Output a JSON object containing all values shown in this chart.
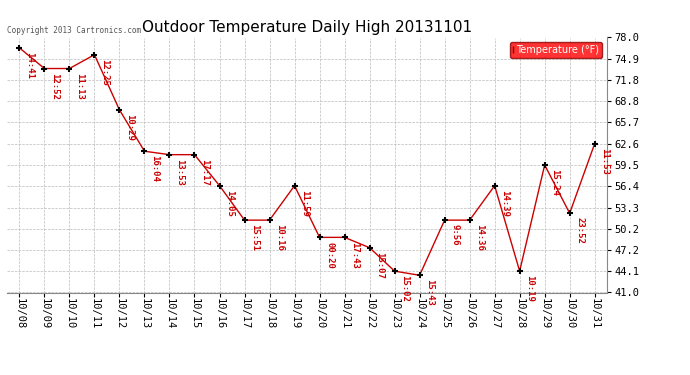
{
  "title": "Outdoor Temperature Daily High 20131101",
  "copyright_text": "Copyright 2013 Cartronics.com",
  "legend_label": "Temperature (°F)",
  "x_labels": [
    "10/08",
    "10/09",
    "10/10",
    "10/11",
    "10/12",
    "10/13",
    "10/14",
    "10/15",
    "10/16",
    "10/17",
    "10/18",
    "10/19",
    "10/20",
    "10/21",
    "10/22",
    "10/23",
    "10/24",
    "10/25",
    "10/26",
    "10/27",
    "10/28",
    "10/29",
    "10/30",
    "10/31"
  ],
  "y_values": [
    76.5,
    73.5,
    73.5,
    75.5,
    67.5,
    61.5,
    61.0,
    61.0,
    56.5,
    51.5,
    51.5,
    56.5,
    49.0,
    49.0,
    47.5,
    44.1,
    43.5,
    51.5,
    51.5,
    56.5,
    44.1,
    59.5,
    52.5,
    62.6
  ],
  "time_labels": [
    "14:41",
    "12:52",
    "11:13",
    "12:25",
    "10:29",
    "16:04",
    "13:53",
    "17:17",
    "14:05",
    "15:51",
    "10:16",
    "11:59",
    "00:20",
    "17:43",
    "15:07",
    "15:02",
    "15:43",
    "9:56",
    "14:36",
    "14:39",
    "10:19",
    "15:24",
    "23:52",
    "11:53"
  ],
  "y_min": 41.0,
  "y_max": 78.0,
  "y_ticks": [
    41.0,
    44.1,
    47.2,
    50.2,
    53.3,
    56.4,
    59.5,
    62.6,
    65.7,
    68.8,
    71.8,
    74.9,
    78.0
  ],
  "line_color": "#cc0000",
  "marker_color": "#000000",
  "bg_color": "#ffffff",
  "grid_color": "#bbbbbb",
  "title_fontsize": 11,
  "label_fontsize": 6.5,
  "tick_fontsize": 7.5
}
